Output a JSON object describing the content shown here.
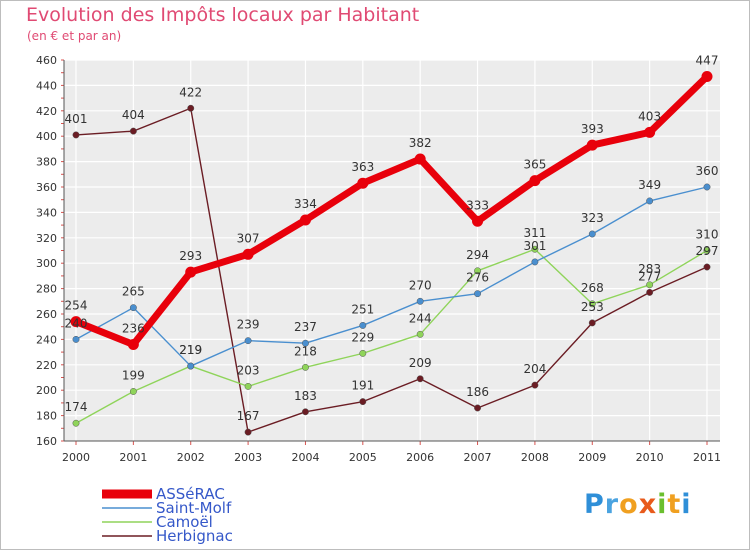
{
  "title": "Evolution des Impôts locaux par Habitant",
  "subtitle": "(en € et par an)",
  "logo": {
    "letters": [
      "P",
      "r",
      "o",
      "x",
      "i",
      "t",
      "i"
    ],
    "colors": [
      "#2f8fd8",
      "#4aa3e0",
      "#f0a020",
      "#e85a1b",
      "#6abf2e",
      "#f0a020",
      "#2f8fd8"
    ]
  },
  "chart_data": {
    "type": "line",
    "title": "Evolution des Impôts locaux par Habitant",
    "subtitle": "(en € et par an)",
    "xlabel": "",
    "ylabel": "",
    "x": [
      "2000",
      "2001",
      "2002",
      "2003",
      "2004",
      "2005",
      "2006",
      "2007",
      "2008",
      "2009",
      "2010",
      "2011"
    ],
    "ylim": [
      160,
      460
    ],
    "ytick_step": 20,
    "yticks": [
      "160",
      "180",
      "200",
      "220",
      "240",
      "260",
      "280",
      "300",
      "320",
      "340",
      "360",
      "380",
      "400",
      "420",
      "440",
      "460"
    ],
    "grid": true,
    "legend_position": "bottom-left",
    "series": [
      {
        "name": "ASSéRAC",
        "color": "#e8000b",
        "values": [
          254,
          236,
          293,
          307,
          334,
          363,
          382,
          333,
          365,
          393,
          403,
          447
        ]
      },
      {
        "name": "Saint-Molf",
        "color": "#4a8fcf",
        "values": [
          240,
          265,
          219,
          239,
          237,
          251,
          270,
          276,
          301,
          323,
          349,
          360
        ]
      },
      {
        "name": "Camoël",
        "color": "#8fd45a",
        "values": [
          174,
          199,
          219,
          203,
          218,
          229,
          244,
          294,
          311,
          268,
          283,
          310
        ]
      },
      {
        "name": "Herbignac",
        "color": "#6b1d24",
        "values": [
          401,
          404,
          422,
          167,
          183,
          191,
          209,
          186,
          204,
          253,
          277,
          297
        ]
      }
    ],
    "labels": [
      {
        "series": 0,
        "x": "2000",
        "text": "254"
      },
      {
        "series": 0,
        "x": "2001",
        "text": "236"
      },
      {
        "series": 0,
        "x": "2002",
        "text": "293"
      },
      {
        "series": 0,
        "x": "2003",
        "text": "307"
      },
      {
        "series": 0,
        "x": "2004",
        "text": "334"
      },
      {
        "series": 0,
        "x": "2005",
        "text": "363"
      },
      {
        "series": 0,
        "x": "2006",
        "text": "382"
      },
      {
        "series": 0,
        "x": "2007",
        "text": "333"
      },
      {
        "series": 0,
        "x": "2008",
        "text": "365"
      },
      {
        "series": 0,
        "x": "2009",
        "text": "393"
      },
      {
        "series": 0,
        "x": "2010",
        "text": "403"
      },
      {
        "series": 0,
        "x": "2011",
        "text": "447"
      },
      {
        "series": 1,
        "x": "2000",
        "text": "240"
      },
      {
        "series": 1,
        "x": "2001",
        "text": "265"
      },
      {
        "series": 1,
        "x": "2002",
        "text": "219"
      },
      {
        "series": 1,
        "x": "2003",
        "text": "239"
      },
      {
        "series": 1,
        "x": "2004",
        "text": "237"
      },
      {
        "series": 1,
        "x": "2005",
        "text": "251"
      },
      {
        "series": 1,
        "x": "2006",
        "text": "270"
      },
      {
        "series": 1,
        "x": "2007",
        "text": "276"
      },
      {
        "series": 1,
        "x": "2008",
        "text": "301"
      },
      {
        "series": 1,
        "x": "2009",
        "text": "323"
      },
      {
        "series": 1,
        "x": "2010",
        "text": "349"
      },
      {
        "series": 1,
        "x": "2011",
        "text": "360"
      },
      {
        "series": 2,
        "x": "2000",
        "text": "174"
      },
      {
        "series": 2,
        "x": "2001",
        "text": "199"
      },
      {
        "series": 2,
        "x": "2002",
        "text": "219"
      },
      {
        "series": 2,
        "x": "2003",
        "text": "203"
      },
      {
        "series": 2,
        "x": "2004",
        "text": "218"
      },
      {
        "series": 2,
        "x": "2005",
        "text": "229"
      },
      {
        "series": 2,
        "x": "2006",
        "text": "244"
      },
      {
        "series": 2,
        "x": "2007",
        "text": "294"
      },
      {
        "series": 2,
        "x": "2008",
        "text": "311"
      },
      {
        "series": 2,
        "x": "2009",
        "text": "268"
      },
      {
        "series": 2,
        "x": "2010",
        "text": "283"
      },
      {
        "series": 2,
        "x": "2011",
        "text": "310"
      },
      {
        "series": 3,
        "x": "2000",
        "text": "401"
      },
      {
        "series": 3,
        "x": "2001",
        "text": "404"
      },
      {
        "series": 3,
        "x": "2002",
        "text": "422"
      },
      {
        "series": 3,
        "x": "2003",
        "text": "167"
      },
      {
        "series": 3,
        "x": "2004",
        "text": "183"
      },
      {
        "series": 3,
        "x": "2005",
        "text": "191"
      },
      {
        "series": 3,
        "x": "2006",
        "text": "209"
      },
      {
        "series": 3,
        "x": "2007",
        "text": "186"
      },
      {
        "series": 3,
        "x": "2008",
        "text": "204"
      },
      {
        "series": 3,
        "x": "2009",
        "text": "253"
      },
      {
        "series": 3,
        "x": "2010",
        "text": "277"
      },
      {
        "series": 3,
        "x": "2011",
        "text": "297"
      }
    ]
  }
}
